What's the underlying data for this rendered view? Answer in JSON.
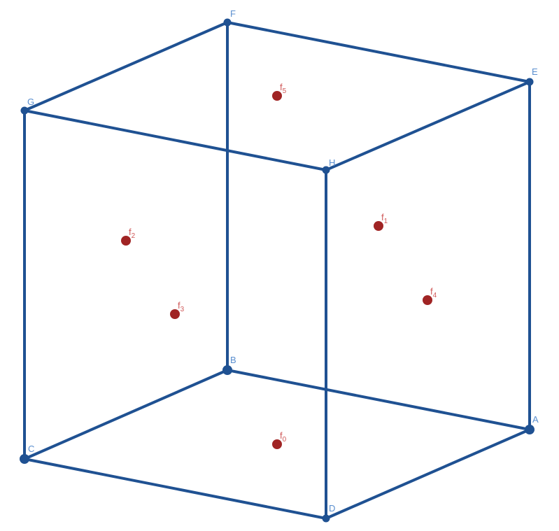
{
  "colors": {
    "edge": "#1f5192",
    "vertex": "#1f5192",
    "vertex_label": "#5b8fcf",
    "face_center": "#a02424",
    "face_label": "#d05a5a"
  },
  "vertices": [
    {
      "id": "A",
      "label": "A"
    },
    {
      "id": "B",
      "label": "B"
    },
    {
      "id": "C",
      "label": "C"
    },
    {
      "id": "D",
      "label": "D"
    },
    {
      "id": "E",
      "label": "E"
    },
    {
      "id": "F",
      "label": "F"
    },
    {
      "id": "G",
      "label": "G"
    },
    {
      "id": "H",
      "label": "H"
    }
  ],
  "edges": [
    [
      "A",
      "B"
    ],
    [
      "B",
      "C"
    ],
    [
      "C",
      "D"
    ],
    [
      "D",
      "A"
    ],
    [
      "E",
      "F"
    ],
    [
      "F",
      "G"
    ],
    [
      "G",
      "H"
    ],
    [
      "H",
      "E"
    ],
    [
      "A",
      "E"
    ],
    [
      "B",
      "F"
    ],
    [
      "C",
      "G"
    ],
    [
      "D",
      "H"
    ]
  ],
  "face_centers": [
    {
      "id": "f0",
      "base": "f",
      "sub": "0"
    },
    {
      "id": "f1",
      "base": "f",
      "sub": "1"
    },
    {
      "id": "f2",
      "base": "f",
      "sub": "2"
    },
    {
      "id": "f3",
      "base": "f",
      "sub": "3"
    },
    {
      "id": "f4",
      "base": "f",
      "sub": "4"
    },
    {
      "id": "f5",
      "base": "f",
      "sub": "5"
    }
  ]
}
